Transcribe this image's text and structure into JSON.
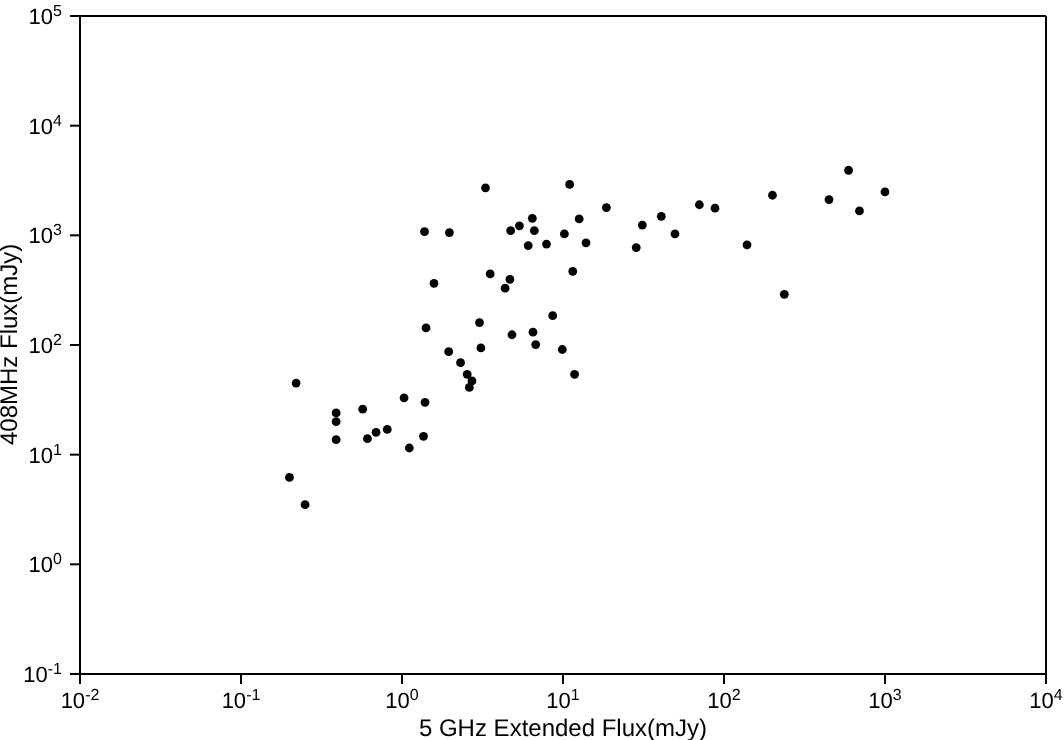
{
  "chart_data": {
    "type": "scatter",
    "xlabel": "5 GHz Extended Flux(mJy)",
    "ylabel": "408MHz Flux(mJy)",
    "log": "xy",
    "marker": "circle",
    "color": "#000000",
    "x": [
      0.2,
      0.25,
      0.22,
      0.39,
      0.39,
      0.39,
      0.57,
      0.61,
      0.69,
      0.81,
      1.03,
      1.11,
      1.36,
      1.39,
      1.41,
      1.38,
      1.58,
      1.97,
      1.95,
      2.31,
      2.54,
      2.72,
      2.62,
      3.03,
      3.09,
      3.3,
      3.53,
      4.37,
      4.68,
      4.82,
      4.73,
      5.36,
      6.08,
      6.45,
      6.64,
      6.51,
      6.77,
      7.9,
      8.63,
      9.9,
      10.2,
      11,
      11.5,
      11.8,
      12.6,
      13.9,
      18.6,
      28.5,
      31.1,
      40.8,
      49.6,
      70.3,
      87.9,
      139,
      200,
      237,
      449,
      594,
      694,
      1000
    ],
    "values": [
      6.2,
      3.5,
      45,
      24,
      20,
      13.7,
      26,
      14,
      16,
      17,
      33,
      11.5,
      14.7,
      30,
      143,
      1080,
      364,
      1060,
      87,
      69,
      54,
      47,
      41,
      160,
      94,
      2710,
      445,
      330,
      396,
      124,
      1105,
      1220,
      807,
      1430,
      1105,
      131,
      101,
      832,
      185,
      91,
      1030,
      2910,
      470,
      54,
      1410,
      855,
      1790,
      774,
      1240,
      1490,
      1030,
      1900,
      1770,
      819,
      2320,
      290,
      2120,
      3920,
      1670,
      2490
    ],
    "xlim": [
      0.01,
      10000
    ],
    "ylim": [
      0.1,
      100000
    ],
    "xticks": [
      {
        "value": 0.01,
        "label": "10$^{-2}$"
      },
      {
        "value": 0.1,
        "label": "10$^{-1}$"
      },
      {
        "value": 1,
        "label": "10$^{0}$"
      },
      {
        "value": 10,
        "label": "10$^{1}$"
      },
      {
        "value": 100,
        "label": "10$^{2}$"
      },
      {
        "value": 1000,
        "label": "10$^{3}$"
      },
      {
        "value": 10000,
        "label": "10$^{4}$"
      }
    ],
    "yticks": [
      {
        "value": 0.1,
        "label": "10$^{-1}$"
      },
      {
        "value": 1,
        "label": "10$^{0}$"
      },
      {
        "value": 10,
        "label": "10$^{1}$"
      },
      {
        "value": 100,
        "label": "10$^{2}$"
      },
      {
        "value": 1000,
        "label": "10$^{3}$"
      },
      {
        "value": 10000,
        "label": "10$^{4}$"
      },
      {
        "value": 100000,
        "label": "10$^{5}$"
      }
    ]
  }
}
